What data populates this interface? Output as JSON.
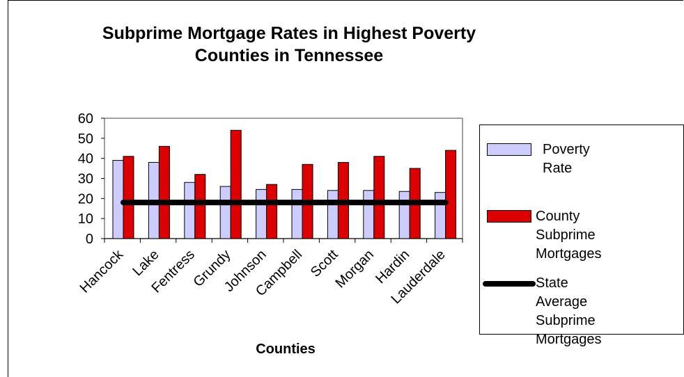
{
  "chart_data": {
    "type": "bar",
    "title": "Subprime Mortgage Rates in Highest Poverty Counties in Tennessee",
    "xlabel": "Counties",
    "ylabel": "",
    "ylim": [
      0,
      60
    ],
    "yticks": [
      "0",
      "10",
      "20",
      "30",
      "40",
      "50",
      "60"
    ],
    "categories": [
      "Hancock",
      "Lake",
      "Fentress",
      "Grundy",
      "Johnson",
      "Campbell",
      "Scott",
      "Morgan",
      "Hardin",
      "Lauderdale"
    ],
    "series": [
      {
        "name": "Poverty Rate",
        "type": "bar",
        "color": "#ccccff",
        "values": [
          39,
          38,
          28,
          26,
          24.5,
          24.5,
          24,
          24,
          23.5,
          23
        ]
      },
      {
        "name": "County Subprime Mortgages",
        "type": "bar",
        "color": "#dd0000",
        "values": [
          41,
          46,
          32,
          54,
          27,
          37,
          38,
          41,
          35,
          44
        ]
      },
      {
        "name": "State Average Subprime Mortgages",
        "type": "line",
        "color": "#000000",
        "values": [
          18,
          18,
          18,
          18,
          18,
          18,
          18,
          18,
          18,
          18
        ]
      }
    ],
    "grid": false,
    "legend_position": "right"
  },
  "legend": {
    "items": [
      {
        "label": "Poverty Rate"
      },
      {
        "label": "County Subprime\nMortgages"
      },
      {
        "label": "State Average\nSubprime\nMortgages"
      }
    ]
  }
}
